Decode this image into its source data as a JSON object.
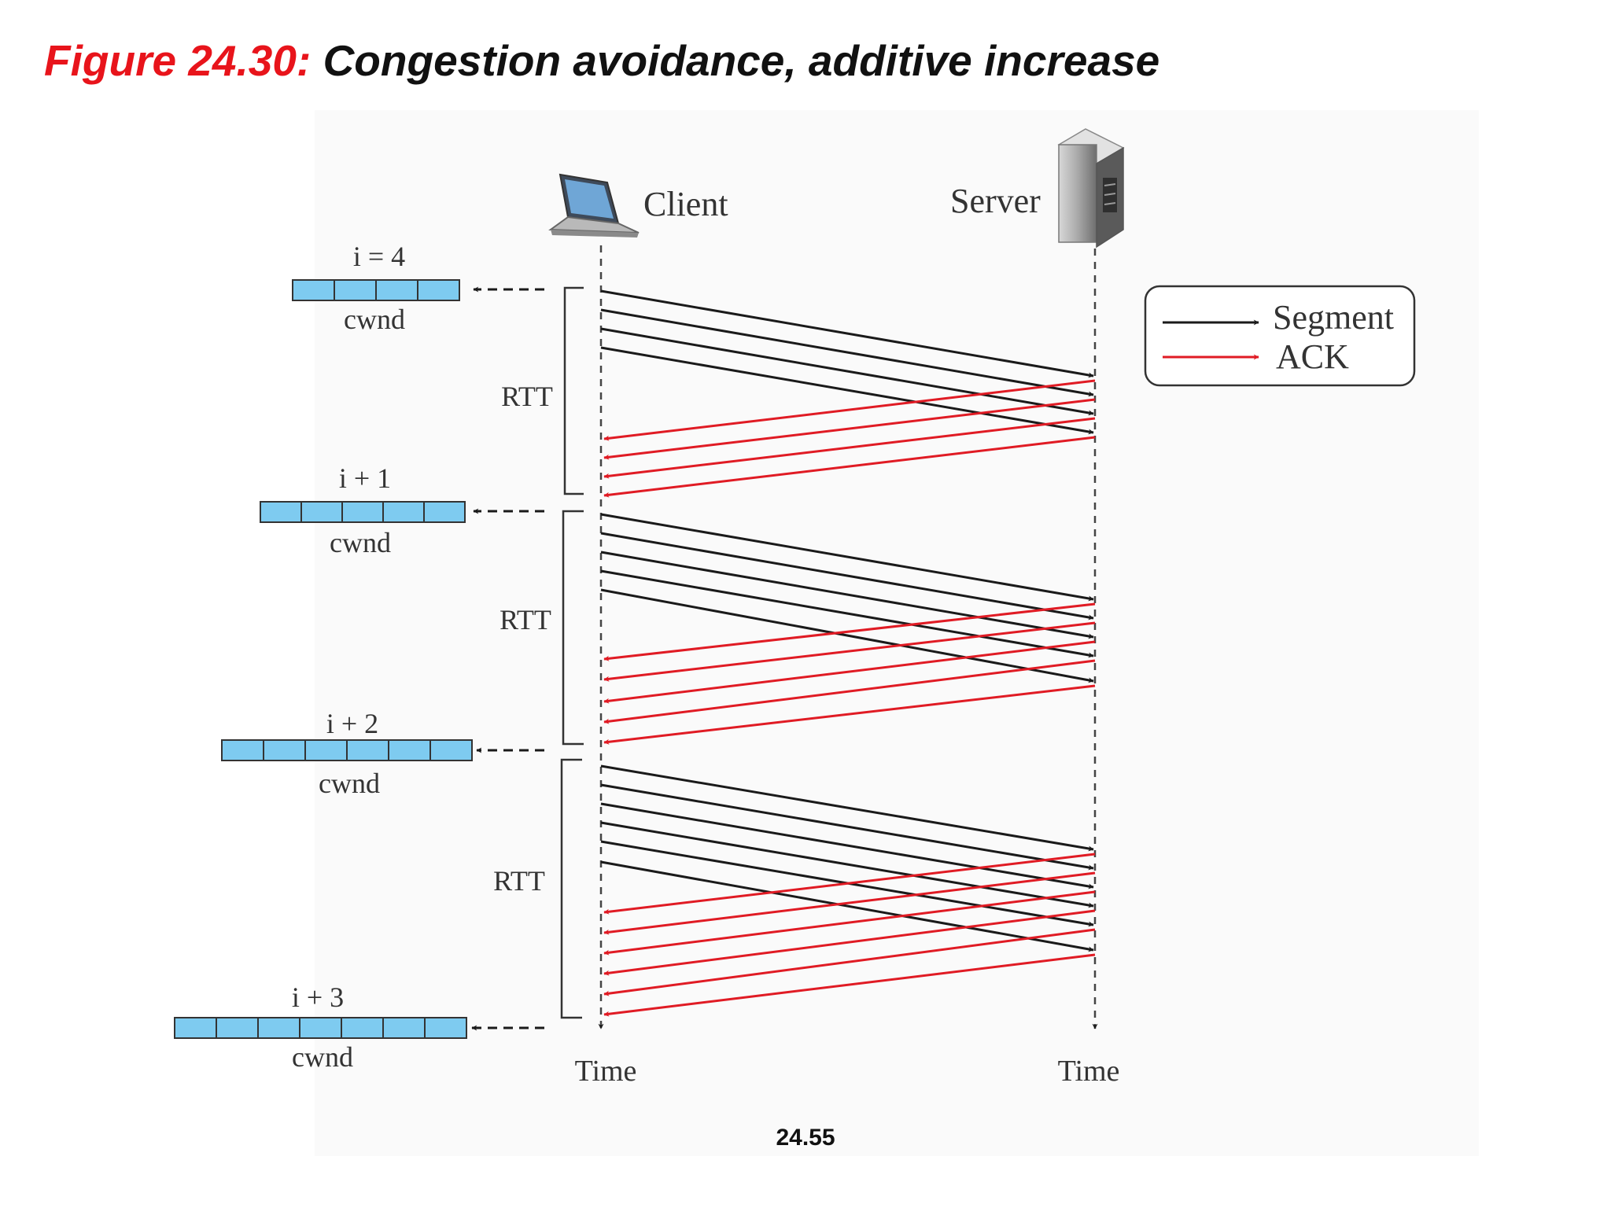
{
  "title": {
    "figure_label": "Figure 24.30:",
    "caption": "Congestion avoidance, additive increase"
  },
  "slide_number": "24.55",
  "colors": {
    "title_accent": "#e8141b",
    "segment": "#1a1a1a",
    "ack": "#e01b24",
    "cwnd_cell": "#7ecbf0"
  },
  "client": {
    "label": "Client",
    "icon": "laptop-icon",
    "time_label": "Time"
  },
  "server": {
    "label": "Server",
    "icon": "server-tower-icon",
    "time_label": "Time"
  },
  "legend": {
    "segment_label": "Segment",
    "ack_label": "ACK"
  },
  "rounds": [
    {
      "window_label": "i = 4",
      "cwnd_label": "cwnd",
      "cwnd_size": 4,
      "rtt_label": "RTT"
    },
    {
      "window_label": "i + 1",
      "cwnd_label": "cwnd",
      "cwnd_size": 5,
      "rtt_label": "RTT"
    },
    {
      "window_label": "i + 2",
      "cwnd_label": "cwnd",
      "cwnd_size": 6,
      "rtt_label": "RTT"
    },
    {
      "window_label": "i + 3",
      "cwnd_label": "cwnd",
      "cwnd_size": 7
    }
  ]
}
